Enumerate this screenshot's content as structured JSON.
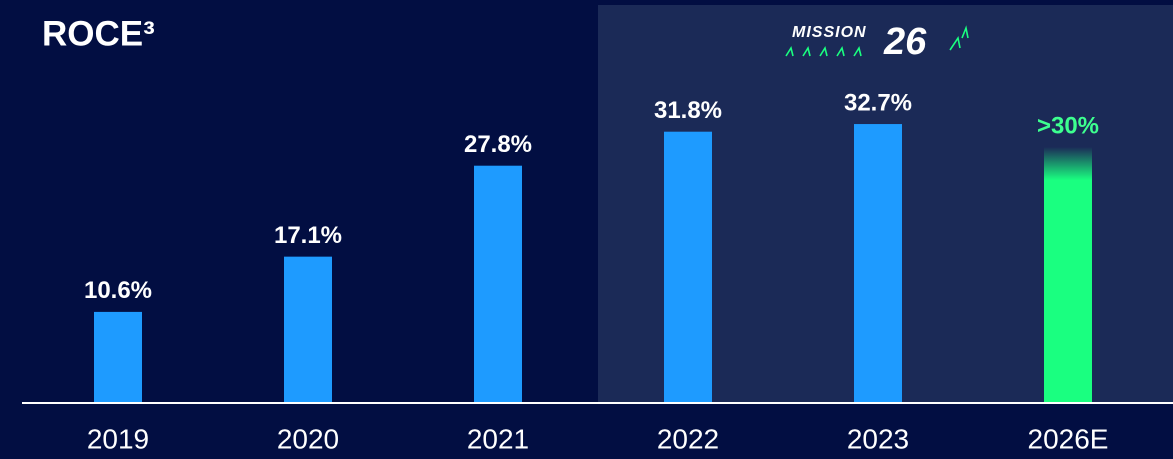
{
  "chart_data": {
    "type": "bar",
    "title": "ROCE³",
    "logo": {
      "text": "MISSION",
      "number": "26"
    },
    "categories": [
      "2019",
      "2020",
      "2021",
      "2022",
      "2023",
      "2026E"
    ],
    "values": [
      10.6,
      17.1,
      27.8,
      31.8,
      32.7,
      30
    ],
    "value_labels": [
      "10.6%",
      "17.1%",
      "27.8%",
      "31.8%",
      "32.7%",
      ">30%"
    ],
    "colors": [
      "#1e9bff",
      "#1e9bff",
      "#1e9bff",
      "#1e9bff",
      "#1e9bff",
      "#1aff80"
    ],
    "value_label_colors": [
      "#ffffff",
      "#ffffff",
      "#ffffff",
      "#ffffff",
      "#ffffff",
      "#3dff8f"
    ]
  }
}
